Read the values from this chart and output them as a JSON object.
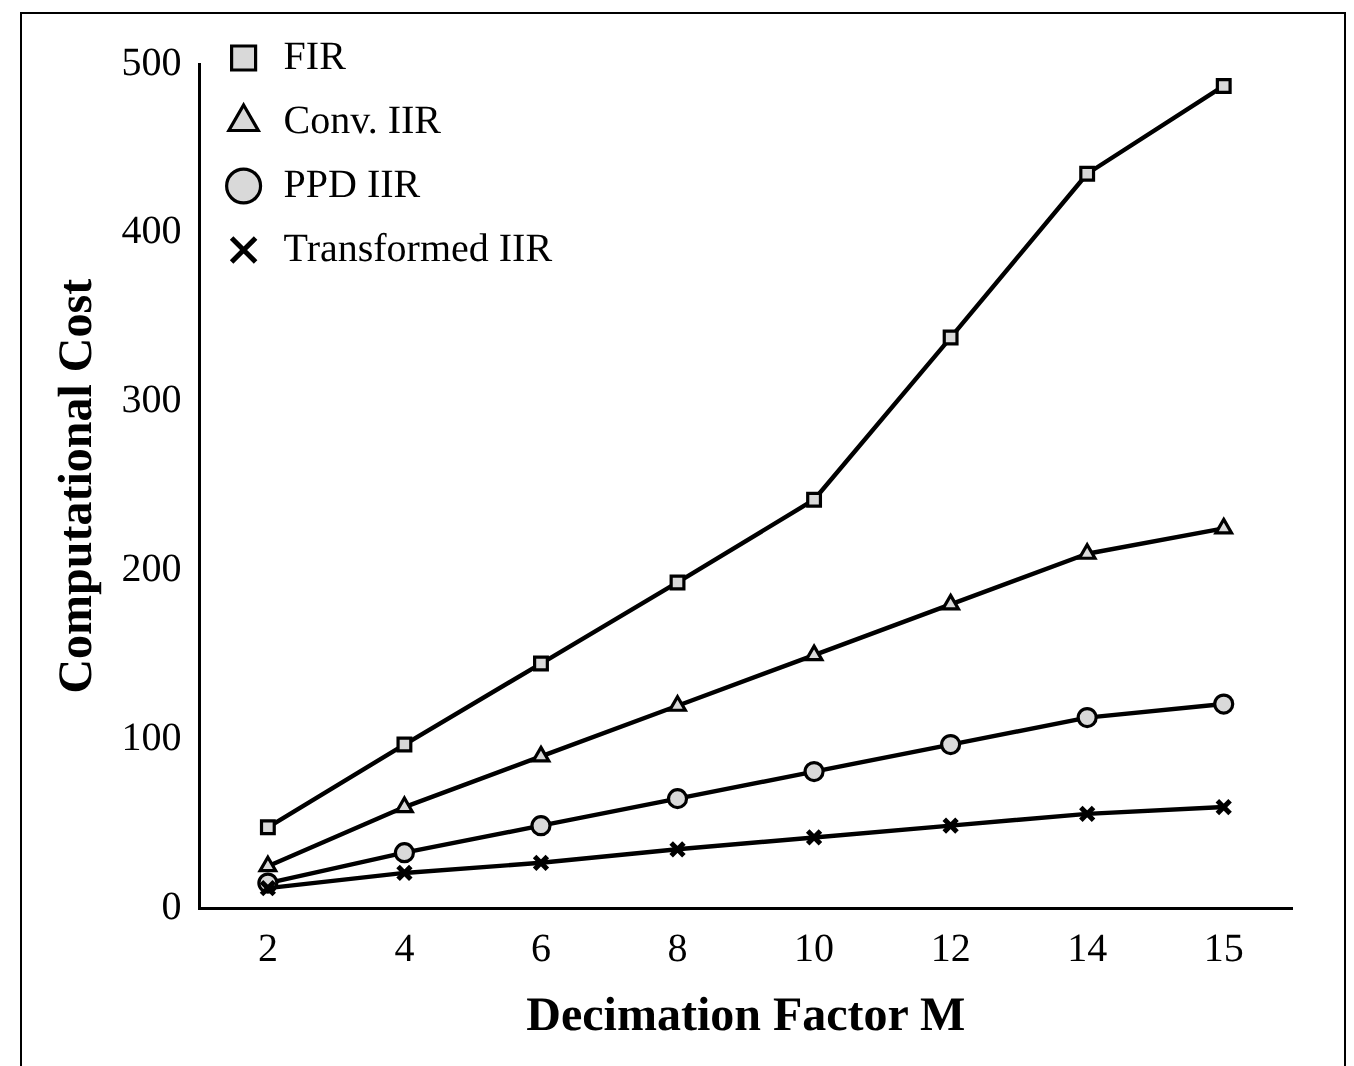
{
  "chart_data": {
    "type": "line",
    "xlabel": "Decimation Factor M",
    "ylabel": "Computational Cost",
    "categories": [
      "2",
      "4",
      "6",
      "8",
      "10",
      "12",
      "14",
      "15"
    ],
    "series": [
      {
        "name": "FIR",
        "color": "#000000",
        "marker": "square",
        "values": [
          48,
          97,
          145,
          193,
          242,
          338,
          435,
          487
        ]
      },
      {
        "name": "Conv. IIR",
        "color": "#000000",
        "marker": "triangle",
        "values": [
          25,
          60,
          90,
          120,
          150,
          180,
          210,
          225
        ]
      },
      {
        "name": "PPD IIR",
        "color": "#000000",
        "marker": "circle",
        "values": [
          15,
          33,
          49,
          65,
          81,
          97,
          113,
          121
        ]
      },
      {
        "name": "Transformed IIR",
        "color": "#000000",
        "marker": "cross",
        "values": [
          12,
          21,
          27,
          35,
          42,
          49,
          56,
          60
        ]
      }
    ],
    "ylim": [
      0,
      500
    ],
    "yticks": [
      0,
      100,
      200,
      300,
      400,
      500
    ],
    "grid": false,
    "legend": "top",
    "line_style": "solid"
  }
}
